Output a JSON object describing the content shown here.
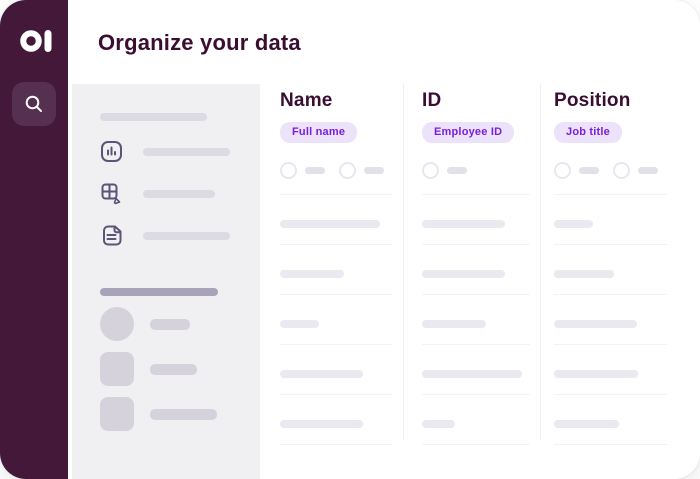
{
  "palette": {
    "sidebar_bg": "#431839",
    "search_button_bg": "#553050",
    "heading_text": "#390E31",
    "badge_bg": "#ECE3FA",
    "badge_text": "#7A1ED9",
    "panel_bg": "#F0EFF2",
    "panel_icon": "#5C5378",
    "skeleton_light": "#EAE9F0",
    "skeleton_medium": "#DCDAE3",
    "skeleton_dark": "#A8A3B8",
    "skeleton_shape": "#D5D2DC",
    "row_divider": "#F3F2F5",
    "col_divider": "#EFEEF2",
    "chip_ring": "#E9E7EE",
    "chip_bar": "#E2E0E8",
    "logo_color": "#FFFFFF"
  },
  "header": {
    "title": "Organize your data"
  },
  "sidebar": {
    "logo_icon": "brand-a-mark",
    "search_icon": "magnifier"
  },
  "nav_panel": {
    "items": [
      {
        "icon": "bar-chart-icon"
      },
      {
        "icon": "table-edit-icon"
      },
      {
        "icon": "document-icon"
      }
    ]
  },
  "table": {
    "columns": [
      {
        "header": "Name",
        "badge": "Full name",
        "chips": 2
      },
      {
        "header": "ID",
        "badge": "Employee ID",
        "chips": 1
      },
      {
        "header": "Position",
        "badge": "Job title",
        "chips": 2
      }
    ],
    "skeleton_row_widths": [
      [
        100,
        83,
        39
      ],
      [
        64,
        83,
        60
      ],
      [
        39,
        64,
        83
      ],
      [
        83,
        100,
        84
      ],
      [
        83,
        33,
        65
      ]
    ]
  }
}
